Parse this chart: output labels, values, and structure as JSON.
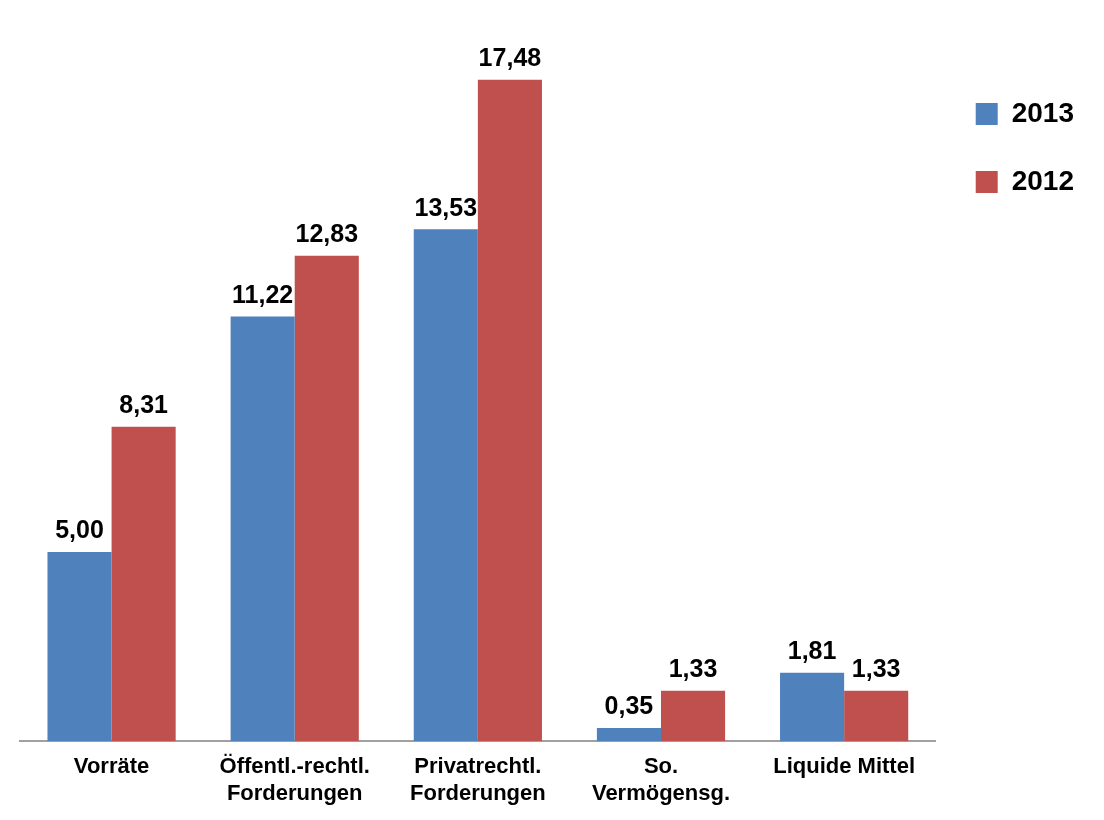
{
  "chart_data": {
    "type": "bar",
    "categories": [
      "Vorräte",
      "Öffentl.-rechtl.\nForderungen",
      "Privatrechtl.\nForderungen",
      "So.\nVermögensg.",
      "Liquide Mittel"
    ],
    "series": [
      {
        "name": "2013",
        "color": "#4f81bd",
        "values": [
          5.0,
          11.22,
          13.53,
          0.35,
          1.81
        ],
        "value_labels": [
          "5,00",
          "11,22",
          "13,53",
          "0,35",
          "1,81"
        ]
      },
      {
        "name": "2012",
        "color": "#c0504d",
        "values": [
          8.31,
          12.83,
          17.48,
          1.33,
          1.33
        ],
        "value_labels": [
          "8,31",
          "12,83",
          "17,48",
          "1,33",
          "1,33"
        ]
      }
    ],
    "legend": "top right",
    "grid": false,
    "tick_labels": "x"
  }
}
